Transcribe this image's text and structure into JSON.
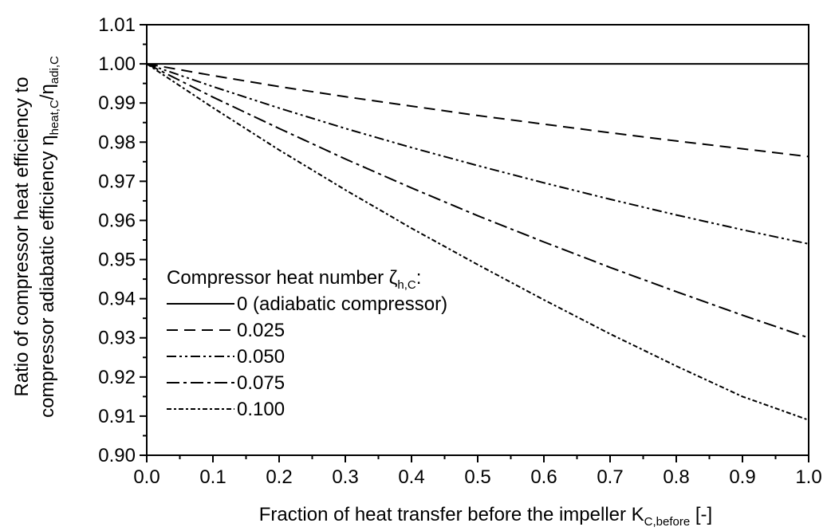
{
  "chart_data": {
    "type": "line",
    "xlabel": {
      "text": "Fraction of heat transfer before the impeller K",
      "sub": "C,before",
      "suffix": " [-]"
    },
    "ylabel": {
      "line1": "Ratio of compressor heat efficiency to",
      "line2_prefix": "compressor adiabatic efficiency η",
      "line2_sub1": "heat,C",
      "line2_mid": "/η",
      "line2_sub2": "adi,C"
    },
    "xlim": [
      0.0,
      1.0
    ],
    "ylim": [
      0.9,
      1.01
    ],
    "x_ticks": [
      0.0,
      0.1,
      0.2,
      0.3,
      0.4,
      0.5,
      0.6,
      0.7,
      0.8,
      0.9,
      1.0
    ],
    "x_tick_labels": [
      "0.0",
      "0.1",
      "0.2",
      "0.3",
      "0.4",
      "0.5",
      "0.6",
      "0.7",
      "0.8",
      "0.9",
      "1.0"
    ],
    "y_ticks": [
      0.9,
      0.91,
      0.92,
      0.93,
      0.94,
      0.95,
      0.96,
      0.97,
      0.98,
      0.99,
      1.0,
      1.01
    ],
    "y_tick_labels": [
      "0.90",
      "0.91",
      "0.92",
      "0.93",
      "0.94",
      "0.95",
      "0.96",
      "0.97",
      "0.98",
      "0.99",
      "1.00",
      "1.01"
    ],
    "grid": false,
    "legend": {
      "position": "bottom-left",
      "title_prefix": "Compressor heat number ζ",
      "title_sub": "h,C",
      "title_suffix": ":"
    },
    "series": [
      {
        "name": "0 (adiabatic compressor)",
        "dash": "solid",
        "x": [
          0.0,
          0.1,
          0.2,
          0.3,
          0.4,
          0.5,
          0.6,
          0.7,
          0.8,
          0.9,
          1.0
        ],
        "y": [
          1.0,
          1.0,
          1.0,
          1.0,
          1.0,
          1.0,
          1.0,
          1.0,
          1.0,
          1.0,
          1.0
        ]
      },
      {
        "name": "0.025",
        "dash": "dash",
        "x": [
          0.0,
          0.1,
          0.2,
          0.3,
          0.4,
          0.5,
          0.6,
          0.7,
          0.8,
          0.9,
          1.0
        ],
        "y": [
          1.0,
          0.997,
          0.9942,
          0.9916,
          0.9892,
          0.9868,
          0.9846,
          0.9824,
          0.9803,
          0.9783,
          0.9763
        ]
      },
      {
        "name": "0.050",
        "dash": "dash-dot-dot",
        "x": [
          0.0,
          0.1,
          0.2,
          0.3,
          0.4,
          0.5,
          0.6,
          0.7,
          0.8,
          0.9,
          1.0
        ],
        "y": [
          1.0,
          0.9942,
          0.9887,
          0.9835,
          0.9786,
          0.974,
          0.9696,
          0.9654,
          0.9614,
          0.9576,
          0.954
        ]
      },
      {
        "name": "0.075",
        "dash": "dash-dot",
        "x": [
          0.0,
          0.1,
          0.2,
          0.3,
          0.4,
          0.5,
          0.6,
          0.7,
          0.8,
          0.9,
          1.0
        ],
        "y": [
          1.0,
          0.9915,
          0.9835,
          0.9757,
          0.9683,
          0.9612,
          0.9545,
          0.948,
          0.9418,
          0.9358,
          0.93
        ]
      },
      {
        "name": "0.100",
        "dash": "short-dash-dot",
        "x": [
          0.0,
          0.1,
          0.2,
          0.3,
          0.4,
          0.5,
          0.6,
          0.7,
          0.8,
          0.9,
          1.0
        ],
        "y": [
          1.0,
          0.9888,
          0.978,
          0.9678,
          0.958,
          0.9487,
          0.9397,
          0.931,
          0.9228,
          0.915,
          0.909
        ]
      }
    ]
  }
}
